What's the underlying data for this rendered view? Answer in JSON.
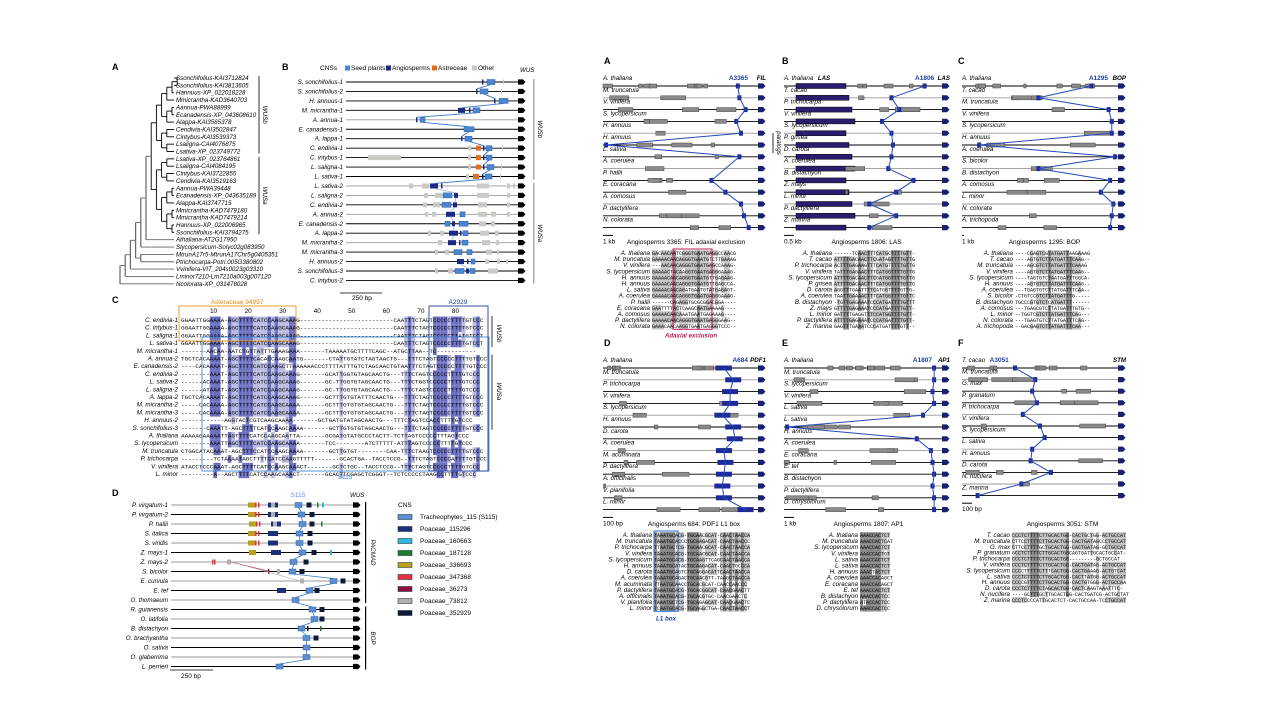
{
  "left": {
    "panelA": {
      "label": "A",
      "leaves": [
        "Ssonchifolius-KAI3712824",
        "Ssonchifolius-KAI3813605",
        "Hannuus-XP_022018228",
        "Mmicrantha-KAD3640703",
        "Aannua-PWA88999",
        "Ecanadensis-XP_043608610",
        "Alappa-KAI3565378",
        "Cendivia-KAI3502847",
        "Cintybus-KAI3539373",
        "Lsaligna-CAI4076875",
        "Lsativa-XP_023749772",
        "Lsativa-XP_023764861",
        "Lsaligna-CAI4084195",
        "Cintybus-KAI3722855",
        "Cendivia-KAI3519163",
        "Aannua-PWA39448",
        "Ecanadensis-XP_043635189",
        "Alappa-KAI3747715",
        "Mmicrantha-KAD7479180",
        "Mmicrantha-KAD7479214",
        "Hannuus-XP_022006965",
        "Ssonchifolius-KAI3794275",
        "Athaliana-AT2G17950",
        "Slycopersicum-Solyc02g083950",
        "MtrunA17r5-MtrunA17Chr5g0405351",
        "Ptrichocarpa-Potri.005G380802",
        "Vvinifera-VIT_204s0023g03310",
        "Lminor7210-Lm7210a003g007120",
        "Ncolorata-XP_031478028"
      ],
      "clades": [
        "WUSb",
        "WUSa"
      ]
    },
    "panelB": {
      "label": "B",
      "legend_title": "CNSs",
      "legend": [
        {
          "name": "Seed plants",
          "color": "#4a86cf"
        },
        {
          "name": "Angiosperms",
          "color": "#1c2a86"
        },
        {
          "name": "Astreceae",
          "color": "#e0701c"
        },
        {
          "name": "Other",
          "color": "#c9c9c5"
        }
      ],
      "gene": "WUS",
      "rows": [
        "S. sonchifolius-1",
        "S. sonchifolius-2",
        "H. annuus-1",
        "M. micrantha-1",
        "A. annua-1",
        "E. canadensis-1",
        "A. lappa-1",
        "C. endivia-1",
        "C. intybus-1",
        "L. saligna-1",
        "L. sativa-1",
        "L. sativa-2",
        "L. saligna-2",
        "C. endivia-2",
        "A. annua-2",
        "E. canadensis-2",
        "A. lappa-2",
        "M. micrantha-2",
        "M. micrantha-3",
        "H. annuus-2",
        "S. sonchifolius-3",
        "C. intybus-2"
      ],
      "clades": [
        "WUSb",
        "WUSa"
      ],
      "scale": "250 bp"
    },
    "panelC": {
      "label": "C",
      "top_label": "Asteraceae 94997",
      "right_label": "A2929",
      "bottom_label": "S115",
      "ticks": [
        "10",
        "20",
        "30",
        "40",
        "50",
        "60",
        "70",
        "80"
      ],
      "clades": [
        "WUSb",
        "WUSa"
      ],
      "rows": [
        {
          "name": "C. endivia-1",
          "seq": "GGAATTGGAAAA-AGCTTTTCATCCAAGCAAAG--------------------------CAATTTCTAGTCCCCCTTTTGTCCC"
        },
        {
          "name": "C. intybus-1",
          "seq": "GGAATTGGAAAA-AGCTTTTCATCCAAGCAAAG--------------------------CAATTTCTAGTCCCCCTTTTGTCCC"
        },
        {
          "name": "L. saligna-1",
          "seq": "GGAATTGGAAAA-AGCTTTTCATCCAAGCAAAG--------------------------CAATTTCTAGTCCCCCTTATGTCCT"
        },
        {
          "name": "L. sativa-1",
          "seq": "GGAATTGGAAAA-AGCTTTTCATCCAAGCAAAG--------------------------CAATTTCTAGTCCCCCTTTTGTCCT"
        },
        {
          "name": "M. micrantha-1",
          "seq": "-------AACAA-AATCTGTTATTTGAAAGAAA-------TAAAAATGCTTTTCAGC--ATGCTTAA--TC-----------"
        },
        {
          "name": "A. annua-2",
          "seq": "TGCTCACAAAAT-AGCTTTTCACACCAAGCAATG-------CTATTGTATCTAGTAACTG---TTTCTAGTCCCCCTTTTGTCCC"
        },
        {
          "name": "E. canadensis-2",
          "seq": "----CACAAAAT-AGCTTTTCATCCAAGCTTAAAAAACCCTTTTATTTGTCTAGCAACTGTAATTTCTAGTCCCCCTTTTGTCCC"
        },
        {
          "name": "C. endivia-2",
          "seq": "--------AAAT-AGCTTTTCATCCAAGCAAAG-------GCATTGGTGTAGCAACTG---TTTCTAGTCCCCCTTTTGTCCC"
        },
        {
          "name": "L. sativa-2",
          "seq": "------ACAAAT-AGCTTTTCATCCAAGCAAAG-------GC-TTGGTGTAGCAACTG---TTTCTGGTCCCCCTTTTGTCCC"
        },
        {
          "name": "L. saligna-2",
          "seq": "------ATAAAT-AGCTTTTCATCCAAGCAAAG-------GC-TTGGTGTAGCAACTG---TTTCTAGTCCCCCTTTTGTCCC"
        },
        {
          "name": "A. lappa-2",
          "seq": "TGCTCACAAAAT-AGCTTTTCATCCAAGCAAAG-------GCTTTGTGTATTTCAACTG---TTTCTAGTCCCCCTTTTGTCCC"
        },
        {
          "name": "M. micrantha-2",
          "seq": "-----CACAAAA-AGCTTTTCATCCAAGCAAAA-------GCTTTGTGTGTAGCAACTG---TTTCTAGTCCCCCTTTTGTCCC"
        },
        {
          "name": "M. micrantha-3",
          "seq": "-----CACAAAA-AGCTTTTCATCCAAGCAAAA-------GCTTTGTGTGTAGCAACTG---TTTCTAGTCCCCCTTTTGTCCC"
        },
        {
          "name": "H. annuus-2",
          "seq": "------------AGGTACTCGTCAAGCAAAA-------GCTGATGTATAGCAACTG---TTTCTAGTCCACCTTTTGTCCC"
        },
        {
          "name": "S. sonchifolius-3",
          "seq": "-------CAAATT-AGCTTTTCATCCAAGCAAAA-------GCTTGTGTGTAGCAACTG---TTTCTAGTCCCCCTTTTGTCCC"
        },
        {
          "name": "A. thaliana",
          "seq": "AAAAAGAAAAATTAGTTTTCATCCAAGCAATTA-------GCGATGTATGCCCTACTT-TCTTAGTCCCCCTTTAGTCCC"
        },
        {
          "name": "S. lycopersicum",
          "seq": "--------AAATTAGCTTTTCATCCAAGCAAAA-------TCC--------ATCTTTTT-ATTTAGTCCCCCTTTTGTCCC"
        },
        {
          "name": "M. truncatula",
          "seq": "CTGGCATACAAAT-AGCTTTCCATCCAAGCAAAA-------GCTTGTGT--------CAA-TTTCTAAGTCCCCCTTTTGTCCC"
        },
        {
          "name": "P. trichocarpa",
          "seq": "---------TCTAAAATAGCTTTTCATCCAAGTTTTT-------GCACTGA--TACCTCCG--TTTCTAGTCCCCATTTTGTCCC"
        },
        {
          "name": "V. vinifera",
          "seq": "ATACCTCCCAAAT-AGCTTTTCATCCAAGCAAACT-------GCTCTGC--TACCTCCG--TTTCTAGTCCCCCTTTTGTCCC"
        },
        {
          "name": "L. minor",
          "seq": "---------A--AGCTTTTCATCCAAGCAAACT-------GCACTTCGAGCTCGGGT--TCTCCCCCTAAGCCTTTTGTCCC"
        }
      ]
    },
    "panelD": {
      "label": "D",
      "top_label": "S115",
      "gene": "WUS",
      "rows": [
        "P. virgatum-1",
        "P. virgatum-2",
        "P. hallii",
        "S. italica",
        "S. viridis",
        "Z. mays-1",
        "Z. mays-2",
        "S. bicolor",
        "E. curvula",
        "E. tef",
        "O. thomaeum",
        "R. guianensis",
        "O. latifolia",
        "B. distachyon",
        "O. brachyantha",
        "O. sativa",
        "O. glaberrima",
        "L. perrieri"
      ],
      "clades": [
        "PACMAD",
        "BOP"
      ],
      "scale": "250 bp",
      "legend_title": "CNS",
      "legend": [
        {
          "name": "Tracheophytes_115 (S115)",
          "color": "#5b8fd0"
        },
        {
          "name": "Poaceae_115296",
          "color": "#1c2f7a"
        },
        {
          "name": "Poaceae_160663",
          "color": "#2fb7e0"
        },
        {
          "name": "Poaceae_187128",
          "color": "#1f7a2a"
        },
        {
          "name": "Poaceae_336693",
          "color": "#b8a020"
        },
        {
          "name": "Poaceae_347368",
          "color": "#e83040"
        },
        {
          "name": "Poaceae_36273",
          "color": "#8a1040"
        },
        {
          "name": "Poaceae_73812",
          "color": "#b0b0b0"
        },
        {
          "name": "Poaceae_352929",
          "color": "#101838"
        }
      ]
    }
  },
  "right": {
    "panels": [
      {
        "label": "A",
        "gene": "FIL",
        "cns": "A3365",
        "scale": "1 kb",
        "side_label": "paralogs",
        "rows": [
          "A. thaliana",
          "M. truncatula",
          "V. vinifera",
          "S. lycopersicum",
          "H. annuus",
          "H. annuus",
          "L. sativa",
          "A. coerulea",
          "P. hallii",
          "E. coracana",
          "A. comosus",
          "P. dactylifera",
          "N. colorata"
        ],
        "align_title": "Angiosperms 3365: FIL adaxial exclusion",
        "align_note": "Adaxial exclusion",
        "seqs": [
          "GACAACAATCGGGTGAATGAGGCCAACG",
          "GAAAACAACAGGGTGAATGTCTTGAAAG",
          "---AACAACAGGGTGAATGAGCCAAAG-",
          "GAAAACTACAAGGTGAATGAGGGAAAG-",
          "GAAAACAACAGGGTGAATGTTGAGAAG-",
          "GAAAACAACAGGGTGAATGTTGAGCCA-",
          "GAAAACAACAGATGAATGTATGAGAGT-",
          "GAAAACAACAGGGTGAATGAGGGAAAG-",
          "------CAGAGGTGCGCGGACGGA----",
          "GAATTTTACTCAAGCAATGAAAAG----",
          "GAAAACAACAAATGAATGAGAAAG----",
          "GAAAACAACAGGGTGAATGAGGGAAG--",
          "GAAACAACAAGGTGAATGAGGGTCCC--"
        ]
      },
      {
        "label": "B",
        "gene": "LAS",
        "cns": "A1806",
        "scale": "0.5 kb",
        "rows": [
          "A. thaliana",
          "T. cacao",
          "P. trichocarpa",
          "V. vinifera",
          "S. lycopersicum",
          "P. grisea",
          "D. carota",
          "A. coerulea",
          "B. distachyon",
          "Z. mays",
          "L. minor",
          "P. dactylifera",
          "Z. marina"
        ],
        "align_title": "Angiosperms 1806: LAS",
        "seqs": [
          "------TCAACTTTCATGCTTTTGTT-",
          "ATTTTGACAACTTCGATAGTTTTGTTG",
          "ACTTTGAGAAGTTTCATGTTTTTGTTG",
          "TATTTGAGAACTTTCATGGTTTTGTTG",
          "ATTTTGACAACTTCGATGGTTTTGTTG",
          "ATTTTGACAACTTTCATGGTTTTGTTG",
          "AGGTTTGAATTTTCATGGTTTTGTTG-",
          "TAATTGAAAACTTTCATGGTTTTGTTC",
          "-TGTTGAGAAATCCCATGATTTTGTTT",
          "GTTTTGAGAAATCCCATGATTTTGTT-",
          "GATTTTGAGGTTTCCATGGTTTTGTT-",
          "ATTTTGAGAAATCCCATGATTTTGTT-",
          "GAGTTTGAAATCCCATGATTTTGTT--"
        ]
      },
      {
        "label": "C",
        "gene": "BOP",
        "cns": "A1295",
        "scale": "1 kb",
        "rows": [
          "A. thaliana",
          "T. cacao",
          "M. truncatula",
          "V. vinifera",
          "S. lycopersicum",
          "H. annuus",
          "A. coerulea",
          "S. bicolor",
          "B. distachyon",
          "A. comosus",
          "L. minor",
          "N. colorata",
          "A. trichopoda"
        ],
        "align_title": "Angiosperms 1295: BOP",
        "seqs": [
          "----CGAGTCGTATGATTAAGAAAG",
          "----AGTGTCTTATGATTTCAAG--",
          "----AGCGTCTTATGATTTCAAAG",
          "----AGTGTCTTATGATTTCAAG--",
          "----TAGTGTCTAATGATTTGGCA-",
          "----AGTGTCTTATGATTTCAAG--",
          "---TGAGTGTCTTATGATTTCAA--",
          "-CTGTCCGTCTTATGATTTG-----",
          "TGCCCGTGTCTCATGATTT------",
          "---TGAGCGTCTTATGATTTGTG--",
          "--TGGTCGTCTTATGATTTCAG---",
          "---TGAGTGTCTTATGATTTCAG--",
          "--GACGAGTCTTATGATTTCAA---"
        ]
      },
      {
        "label": "D",
        "gene": "PDF1",
        "cns": "A684",
        "scale": "100 bp",
        "rows": [
          "A. thaliana",
          "M. truncatula",
          "P. trichocarpa",
          "V. vinifera",
          "S. lycopersicum",
          "H. annuus",
          "D. carota",
          "A. coerulea",
          "M. acuminata",
          "P. dactylifera",
          "A. officinalis",
          "V. planifolia",
          "L. minor"
        ],
        "align_title": "Angiosperms 684: PDF1 L1 box",
        "align_note": "L1 box",
        "seqs": [
          "TAAATGCACG-TGCAACGCAT-CAACTAACCA",
          "TAAATGCACCCTGCAAGACAT-CAACTAACCC",
          "TTAATGCTCG-TGCAACGCAT-CAACTAACCA",
          "TAAATGCACG-TGCAACGCAT-CAACTAACCA",
          "TAAATGCACG-TGCAAGTTCAGCAACTAACCA",
          "TAAATGCATACTGCAAGACAT-CAACTGCCCA",
          "TAAATGCAGTCTGCAGGACATTCAACTAACCA",
          "TAAATGCAGACTGCAACGTT-TAAGCTAACCA",
          "TTAATGCAACCTGCACGCAT-CAACCAACCC",
          "TAAATGCACG-TGCACGGCAT-CAACGAACTT",
          "TAAATGCACG-TGCACGTGC-CAACGAACTC",
          "TAAATGCTCG-TGCAGAGCAT-CAACGAACTC",
          "TCAATGCACG-TGCAGGCTGA-CAACTAACCT"
        ]
      },
      {
        "label": "E",
        "gene": "AP1",
        "cns": "A1807",
        "scale": "1 kb",
        "rows": [
          "A. thaliana",
          "M. truncatula",
          "S. lycopersicum",
          "V. vinifera",
          "L. sativa",
          "L. sativa",
          "H. annuus",
          "A. coerulea",
          "E. coracana",
          "E. tef",
          "B. distachyon",
          "P. dactylifera",
          "D. chrysolorum"
        ],
        "align_title": "Angiosperms 1807: AP1",
        "seqs": [
          "AAACCACTCT",
          "AAACCACTCAT",
          "AAACCACTCT",
          "AAACCACTGT",
          "AAACCACTCT",
          "AAACCACTCT",
          "AAACTACTCT",
          "AAACCACAGCT",
          "AAACCACAGCT",
          "AAACCACTCT",
          "AAACCACTCC",
          "ATACCACTCC",
          "AAACCACTCC"
        ]
      },
      {
        "label": "F",
        "gene": "STM",
        "cns": "A3051",
        "scale": "100 bp",
        "rows": [
          "T. cacao",
          "M. truncatula",
          "G. max",
          "P. granatum",
          "P. trichocarpa",
          "V. vinifera",
          "S. lycopersicum",
          "L. sativa",
          "H. annuus",
          "D. carota",
          "N. nucifera",
          "Z. marina"
        ],
        "align_title": "Angiosperms 3051: STM",
        "seqs": [
          "CCCTCTTTTCTTGCACTGG-CACTGCTGG-ACTGCCAT",
          "CTTCCTTTTCTTGCACTGG-CACTGATAGCCCTGCCAT",
          "CTTCCTTTTGCTGCACTGG-CACTGATAG-GCTGCCAT",
          "GCCTCTTTTCTTGCACTGGCAGTGATTGCACTGCCAT-",
          "CCCTCTTTTCTTGCACTGG---------GCTGCCAT",
          "CCCTCTTTTCTTGCACTGG-CACTGATAG-ACTGCCAT",
          "CCCCTTTTTCTTTCACTGG-CACTGAAAG-ACTGTCAT",
          "CCCTCTTTTCTTGCACTGG-CACTTATGG-ACTGCCAT",
          "CCCCGTTTTCTTGCACTGG-CACTGTGGG-ACTGCCAA",
          "CCCTCTTTTCTAGCACTGG-CACTCAAGTAAATTTC-",
          "----GCTTTGCTTGCACTGG-CACTGATCG-ACTGCTAT",
          "CCCTCCCCATTGCACTCT-CACTGCCAA-TCCTGCCAT"
        ]
      }
    ]
  }
}
